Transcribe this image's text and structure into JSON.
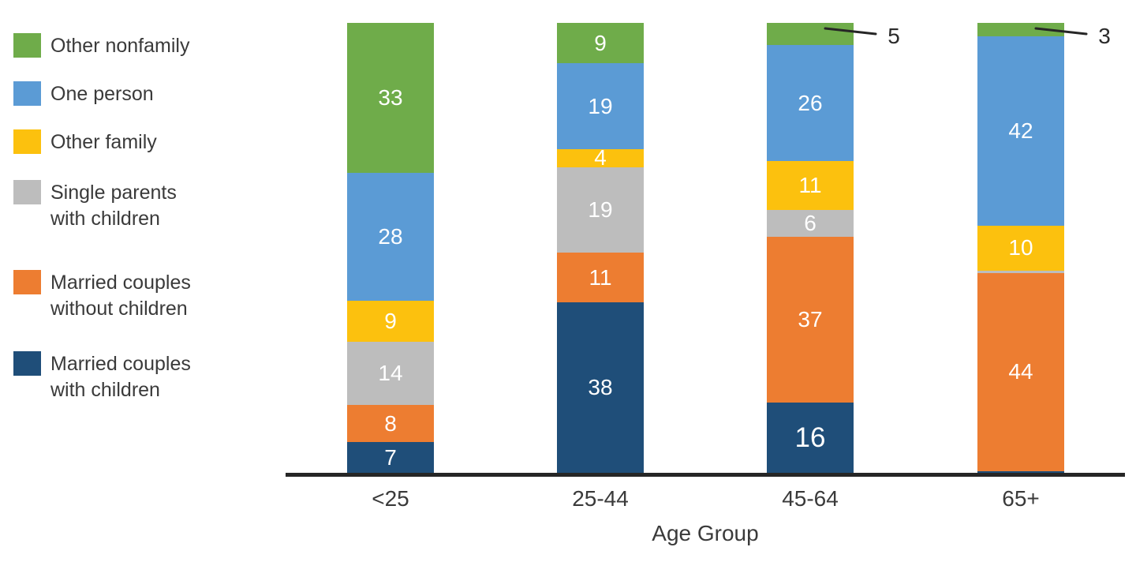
{
  "chart_data": {
    "type": "bar",
    "stacked": true,
    "title": "",
    "xlabel": "Age Group",
    "ylabel": "",
    "ylim": [
      0,
      100
    ],
    "grid": false,
    "legend_position": "left",
    "categories": [
      "<25",
      "25-44",
      "45-64",
      "65+"
    ],
    "series": [
      {
        "name": "Married couples with children",
        "color": "#1F4E79",
        "values": [
          7,
          38,
          16,
          0.5
        ],
        "labels": [
          "7",
          "38",
          "16",
          ""
        ]
      },
      {
        "name": "Married couples without children",
        "color": "#ED7D31",
        "values": [
          8,
          11,
          37,
          44
        ],
        "labels": [
          "8",
          "11",
          "37",
          "44"
        ]
      },
      {
        "name": "Single parents with children",
        "color": "#BDBDBD",
        "values": [
          14,
          19,
          6,
          0.5
        ],
        "labels": [
          "14",
          "19",
          "6",
          ""
        ]
      },
      {
        "name": "Other family",
        "color": "#FCC10E",
        "values": [
          9,
          4,
          11,
          10
        ],
        "labels": [
          "9",
          "4",
          "11",
          "10"
        ]
      },
      {
        "name": "One person",
        "color": "#5B9BD5",
        "values": [
          28,
          19,
          26,
          42
        ],
        "labels": [
          "28",
          "19",
          "26",
          "42"
        ]
      },
      {
        "name": "Other nonfamily",
        "color": "#6FAC4A",
        "values": [
          33,
          9,
          5,
          3
        ],
        "labels": [
          "33",
          "9",
          "",
          ""
        ]
      }
    ],
    "callouts": [
      {
        "category_index": 2,
        "label": "5"
      },
      {
        "category_index": 3,
        "label": "3"
      }
    ],
    "emphasized_label": {
      "category_index": 2,
      "series_index": 0
    }
  },
  "legend": {
    "items": [
      {
        "lines": [
          "Other nonfamily"
        ],
        "color": "#6FAC4A"
      },
      {
        "lines": [
          "One person"
        ],
        "color": "#5B9BD5"
      },
      {
        "lines": [
          "Other family"
        ],
        "color": "#FCC10E"
      },
      {
        "lines": [
          "Single parents",
          "with children"
        ],
        "color": "#BDBDBD"
      },
      {
        "lines": [
          "Married couples",
          "without children"
        ],
        "color": "#ED7D31"
      },
      {
        "lines": [
          "Married couples",
          "with children"
        ],
        "color": "#1F4E79"
      }
    ]
  },
  "colors": {
    "background": "#FFFFFF",
    "axis_line": "#262626",
    "label_text": "#3A3A3A",
    "bar_value_text": "#FFFFFF",
    "callout_text": "#2B2B2B",
    "callout_line": "#262626"
  }
}
